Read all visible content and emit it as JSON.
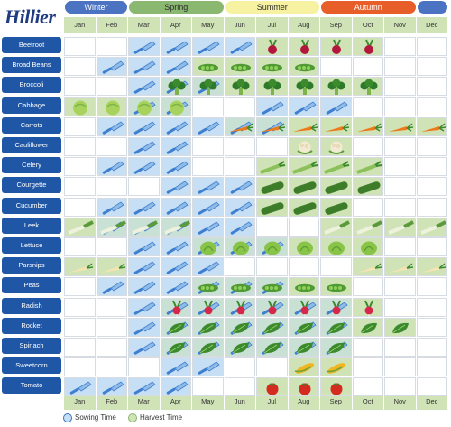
{
  "brand": "Hillier",
  "seasons": [
    {
      "label": "Winter",
      "color": "#4b73c2",
      "start": 0,
      "span": 2,
      "dark": false
    },
    {
      "label": "Spring",
      "color": "#8ab870",
      "start": 2,
      "span": 3,
      "dark": true
    },
    {
      "label": "Summer",
      "color": "#f6f2a2",
      "start": 5,
      "span": 3,
      "dark": true
    },
    {
      "label": "Autumn",
      "color": "#e85e28",
      "start": 8,
      "span": 3,
      "dark": false
    },
    {
      "label": "",
      "color": "#4b73c2",
      "start": 11,
      "span": 1,
      "dark": false
    }
  ],
  "months": [
    "Jan",
    "Feb",
    "Mar",
    "Apr",
    "May",
    "Jun",
    "Jul",
    "Aug",
    "Sep",
    "Oct",
    "Nov",
    "Dec"
  ],
  "colors": {
    "sow": "#c7dff5",
    "harvest": "#cfe3b6",
    "both": "#c9e0d5",
    "empty": "#ffffff",
    "grid": "#d7dce2",
    "label": "#1f56a5"
  },
  "legend": {
    "sow": "Sowing Time",
    "harvest": "Harvest Time"
  },
  "vegetables": [
    {
      "name": "Beetroot",
      "icon": "beet",
      "sow": [
        2,
        3,
        4,
        5
      ],
      "harvest": [
        6,
        7,
        8,
        9
      ]
    },
    {
      "name": "Broad Beans",
      "icon": "pod",
      "sow": [
        1,
        2,
        3
      ],
      "harvest": [
        4,
        5,
        6,
        7
      ]
    },
    {
      "name": "Broccoli",
      "icon": "broccoli",
      "sow": [
        2,
        3,
        4
      ],
      "harvest": [
        3,
        4,
        5,
        6,
        7,
        8,
        9
      ]
    },
    {
      "name": "Cabbage",
      "icon": "cabbage",
      "sow": [
        2,
        3,
        6,
        7,
        8
      ],
      "harvest": [
        0,
        1,
        2,
        3
      ]
    },
    {
      "name": "Carrots",
      "icon": "carrot",
      "sow": [
        1,
        2,
        3,
        4,
        5,
        6
      ],
      "harvest": [
        5,
        6,
        7,
        8,
        9,
        10,
        11
      ]
    },
    {
      "name": "Cauliflower",
      "icon": "cauliflower",
      "sow": [
        2,
        3
      ],
      "harvest": [
        7,
        8
      ]
    },
    {
      "name": "Celery",
      "icon": "celery",
      "sow": [
        1,
        2,
        3
      ],
      "harvest": [
        6,
        7,
        8,
        9
      ]
    },
    {
      "name": "Courgette",
      "icon": "cucumber",
      "sow": [
        3,
        4,
        5
      ],
      "harvest": [
        6,
        7,
        8,
        9
      ]
    },
    {
      "name": "Cucumber",
      "icon": "cucumber",
      "sow": [
        1,
        2,
        3,
        4,
        5
      ],
      "harvest": [
        6,
        7,
        8
      ]
    },
    {
      "name": "Leek",
      "icon": "leek",
      "sow": [
        1,
        2,
        3,
        4,
        5
      ],
      "harvest": [
        0,
        1,
        2,
        3,
        8,
        9,
        10,
        11
      ]
    },
    {
      "name": "Lettuce",
      "icon": "lettuce",
      "sow": [
        2,
        3,
        4,
        5,
        6
      ],
      "harvest": [
        4,
        5,
        6,
        7,
        8,
        9
      ]
    },
    {
      "name": "Parsnips",
      "icon": "parsnip",
      "sow": [
        2,
        3,
        4
      ],
      "harvest": [
        0,
        1,
        9,
        10,
        11
      ]
    },
    {
      "name": "Peas",
      "icon": "pod",
      "sow": [
        1,
        2,
        3,
        4,
        5,
        6
      ],
      "harvest": [
        4,
        5,
        6,
        7,
        8
      ]
    },
    {
      "name": "Radish",
      "icon": "radish",
      "sow": [
        2,
        3,
        4,
        5,
        6,
        7,
        8
      ],
      "harvest": [
        3,
        4,
        5,
        6,
        7,
        8,
        9
      ]
    },
    {
      "name": "Rocket",
      "icon": "leaf",
      "sow": [
        2,
        3,
        4,
        5,
        6,
        7,
        8
      ],
      "harvest": [
        3,
        4,
        5,
        6,
        7,
        8,
        9,
        10
      ]
    },
    {
      "name": "Spinach",
      "icon": "leaf",
      "sow": [
        2,
        3,
        4,
        5,
        6,
        7,
        8
      ],
      "harvest": [
        3,
        4,
        5,
        6,
        7,
        8
      ]
    },
    {
      "name": "Sweetcorn",
      "icon": "corn",
      "sow": [
        3,
        4
      ],
      "harvest": [
        7,
        8
      ]
    },
    {
      "name": "Tomato",
      "icon": "tomato",
      "sow": [
        0,
        1,
        2,
        3
      ],
      "harvest": [
        6,
        7,
        8
      ]
    }
  ]
}
